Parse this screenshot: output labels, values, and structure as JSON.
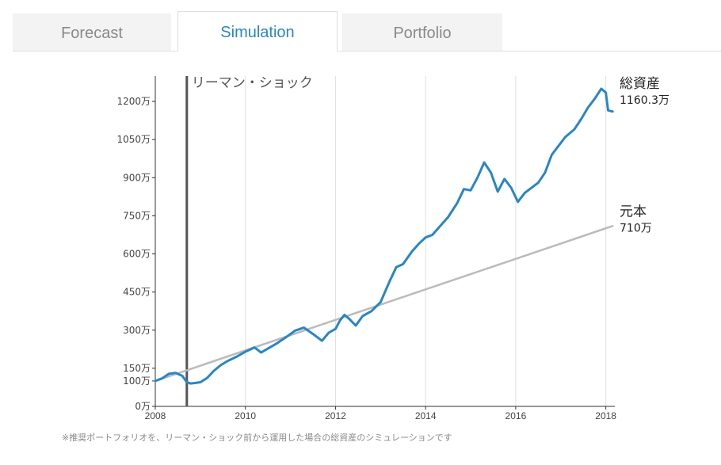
{
  "tabs": [
    {
      "label": "Forecast",
      "active": false
    },
    {
      "label": "Simulation",
      "active": true
    },
    {
      "label": "Portfolio",
      "active": false
    }
  ],
  "footnote": "※推奨ポートフォリオを、リーマン・ショック前から運用した場合の総資産のシミュレーションです",
  "colors": {
    "accent": "#2a86c2",
    "series_total": "#2a86c2",
    "series_principal": "#bbbbbb",
    "event_line": "#555555",
    "tab_inactive_bg": "#f3f3f3",
    "tab_inactive_text": "#8a8a8a"
  },
  "chart_data": {
    "type": "line",
    "xlim": [
      2008,
      2018.2
    ],
    "ylim": [
      0,
      1300
    ],
    "x_ticks": [
      2008,
      2010,
      2012,
      2014,
      2016,
      2018
    ],
    "x_tick_labels": [
      "2008",
      "2010",
      "2012",
      "2014",
      "2016",
      "2018"
    ],
    "y_ticks": [
      0,
      100,
      150,
      300,
      450,
      600,
      750,
      900,
      1050,
      1200
    ],
    "y_tick_labels": [
      "0万",
      "100万",
      "150万",
      "300万",
      "450万",
      "600万",
      "750万",
      "900万",
      "1050万",
      "1200万"
    ],
    "grid": "vertical",
    "event": {
      "x": 2008.7,
      "label": "リーマン・ショック"
    },
    "series": [
      {
        "name": "総資産",
        "end_label": "1160.3万",
        "x": [
          2008.0,
          2008.15,
          2008.3,
          2008.45,
          2008.6,
          2008.7,
          2008.78,
          2008.88,
          2009.0,
          2009.15,
          2009.3,
          2009.45,
          2009.6,
          2009.8,
          2010.0,
          2010.2,
          2010.35,
          2010.5,
          2010.7,
          2010.9,
          2011.1,
          2011.3,
          2011.5,
          2011.7,
          2011.85,
          2012.0,
          2012.1,
          2012.2,
          2012.3,
          2012.45,
          2012.6,
          2012.8,
          2013.0,
          2013.2,
          2013.35,
          2013.5,
          2013.7,
          2013.85,
          2014.0,
          2014.15,
          2014.3,
          2014.5,
          2014.7,
          2014.85,
          2015.0,
          2015.15,
          2015.3,
          2015.45,
          2015.6,
          2015.75,
          2015.9,
          2016.05,
          2016.2,
          2016.35,
          2016.5,
          2016.65,
          2016.8,
          2016.95,
          2017.1,
          2017.3,
          2017.45,
          2017.6,
          2017.75,
          2017.9,
          2018.0,
          2018.05,
          2018.15
        ],
        "values": [
          100,
          110,
          128,
          132,
          120,
          95,
          90,
          92,
          95,
          112,
          140,
          162,
          178,
          195,
          215,
          232,
          212,
          228,
          248,
          272,
          298,
          310,
          285,
          258,
          290,
          305,
          338,
          360,
          345,
          318,
          355,
          375,
          410,
          492,
          548,
          560,
          610,
          640,
          665,
          675,
          705,
          745,
          800,
          855,
          850,
          900,
          960,
          920,
          845,
          895,
          860,
          805,
          840,
          860,
          880,
          920,
          990,
          1025,
          1060,
          1090,
          1130,
          1175,
          1210,
          1250,
          1235,
          1165,
          1160.3
        ]
      },
      {
        "name": "元本",
        "end_label": "710万",
        "x": [
          2008.0,
          2018.15
        ],
        "values": [
          100,
          710
        ]
      }
    ]
  }
}
